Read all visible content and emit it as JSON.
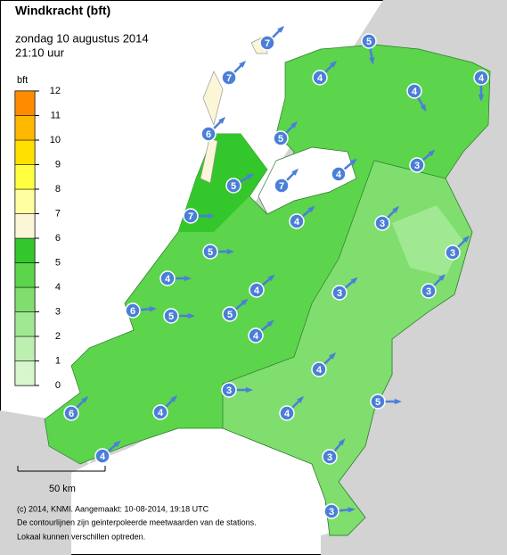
{
  "header": {
    "title": "Windkracht (bft)",
    "subtitle": "zondag 10 augustus 2014",
    "time": "21:10 uur"
  },
  "legend": {
    "title": "bft",
    "ticks": [
      0,
      1,
      2,
      3,
      4,
      5,
      6,
      7,
      8,
      9,
      10,
      11,
      12
    ],
    "colors": [
      "#d6f7cc",
      "#bdf0b0",
      "#a0e891",
      "#7fde6e",
      "#5cd44c",
      "#33c72b",
      "#fbf6d8",
      "#ffffa0",
      "#ffff40",
      "#ffe000",
      "#ffb800",
      "#ff8c00"
    ]
  },
  "stations": [
    {
      "value": 7
    },
    {
      "value": 5
    },
    {
      "value": 7
    },
    {
      "value": 4
    },
    {
      "value": 4
    },
    {
      "value": 4
    },
    {
      "value": 6
    },
    {
      "value": 5
    },
    {
      "value": 5
    },
    {
      "value": 7
    },
    {
      "value": 4
    },
    {
      "value": 3
    },
    {
      "value": 7
    },
    {
      "value": 4
    },
    {
      "value": 3
    },
    {
      "value": 3
    },
    {
      "value": 5
    },
    {
      "value": 4
    },
    {
      "value": 4
    },
    {
      "value": 3
    },
    {
      "value": 3
    },
    {
      "value": 6
    },
    {
      "value": 5
    },
    {
      "value": 5
    },
    {
      "value": 4
    },
    {
      "value": 4
    },
    {
      "value": 3
    },
    {
      "value": 5
    },
    {
      "value": 6
    },
    {
      "value": 4
    },
    {
      "value": 4
    },
    {
      "value": 3
    },
    {
      "value": 4
    },
    {
      "value": 3
    }
  ],
  "scale_bar": "50 km",
  "footer": [
    "(c) 2014, KNMI. Aangemaakt: 10-08-2014, 19:18 UTC",
    "De contourlijnen zijn geinterpoleerde meetwaarden van de stations.",
    "Lokaal kunnen verschillen optreden."
  ]
}
